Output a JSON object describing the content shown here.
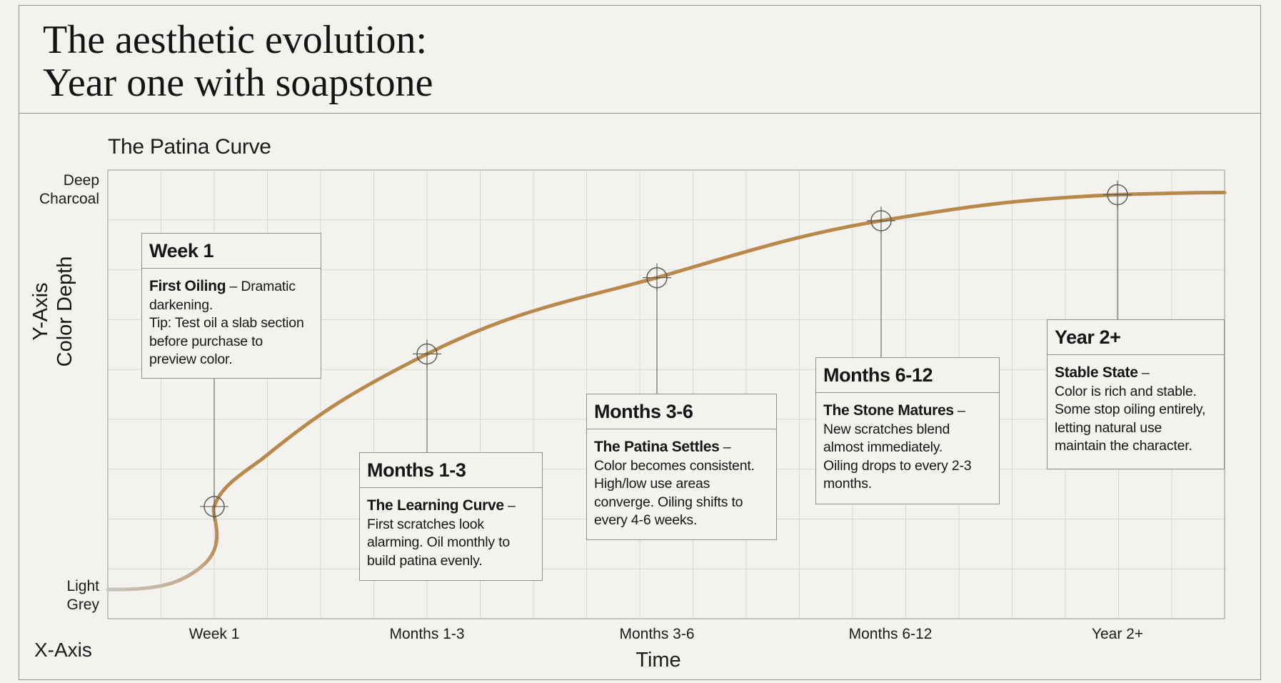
{
  "header": {
    "title_line1": "The aesthetic evolution:",
    "title_line2": "Year one with soapstone"
  },
  "chart_data": {
    "type": "line",
    "title": "The Patina Curve",
    "xlabel": "Time",
    "xaxis_prefix": "X-Axis",
    "ylabel": "Color Depth",
    "yaxis_prefix": "Y-Axis",
    "y_top_label": "Deep Charcoal",
    "y_top_line1": "Deep",
    "y_top_line2": "Charcoal",
    "y_bottom_label": "Light Grey",
    "y_bottom_line1": "Light",
    "y_bottom_line2": "Grey",
    "categories": [
      "Week 1",
      "Months 1-3",
      "Months 3-6",
      "Months 6-12",
      "Year 2+"
    ],
    "ylim": [
      0,
      1
    ],
    "grid": true,
    "line_color": "#b8894a",
    "milestones": [
      {
        "label": "Week 1",
        "value": 0.25
      },
      {
        "label": "Months 1-3",
        "value": 0.59
      },
      {
        "label": "Months 3-6",
        "value": 0.76
      },
      {
        "label": "Months 6-12",
        "value": 0.887
      },
      {
        "label": "Year 2+",
        "value": 0.945
      }
    ],
    "annotations": [
      {
        "stage": "Week 1",
        "heading": "First Oiling",
        "text_lines": [
          "Dramatic",
          "darkening.",
          "Tip: Test oil a slab section",
          "before purchase to",
          "preview color."
        ]
      },
      {
        "stage": "Months 1-3",
        "heading": "The Learning Curve",
        "text_lines": [
          "First scratches look",
          "alarming. Oil monthly to",
          "build patina evenly."
        ]
      },
      {
        "stage": "Months 3-6",
        "heading": "The Patina Settles",
        "text_lines": [
          "Color becomes consistent.",
          "High/low use areas",
          "converge. Oiling shifts to",
          "every 4-6 weeks."
        ]
      },
      {
        "stage": "Months 6-12",
        "heading": "The Stone Matures",
        "text_lines": [
          "New scratches blend",
          "almost immediately.",
          "Oiling drops to every 2-3",
          "months."
        ]
      },
      {
        "stage": "Year 2+",
        "heading": "Stable State",
        "text_lines": [
          "Color is rich and stable.",
          "Some stop oiling entirely,",
          "letting natural use",
          "maintain the character."
        ]
      }
    ]
  }
}
